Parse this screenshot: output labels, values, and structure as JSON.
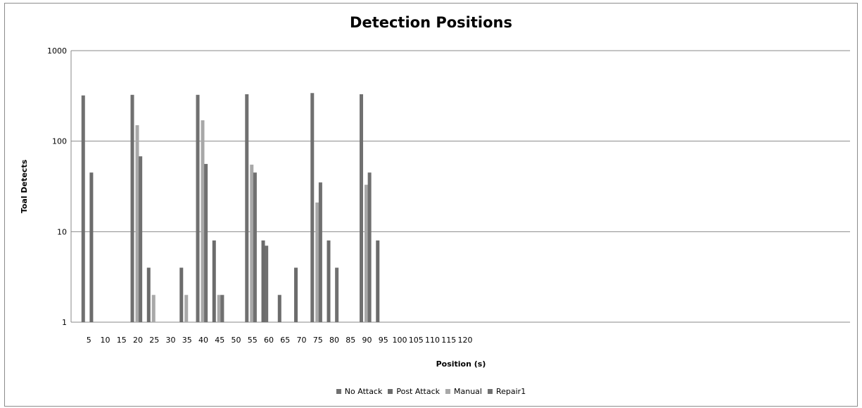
{
  "chart_data": {
    "type": "bar",
    "title": "Detection Positions",
    "xlabel": "Position (s)",
    "ylabel": "Toal Detects",
    "y_scale": "log",
    "ylim": [
      1,
      1000
    ],
    "y_ticks": [
      "1",
      "10",
      "100",
      "1000"
    ],
    "x_tick_labels": [
      "5",
      "10",
      "15",
      "20",
      "25",
      "30",
      "35",
      "40",
      "45",
      "50",
      "55",
      "60",
      "65",
      "70",
      "75",
      "80",
      "85",
      "90",
      "95",
      "100",
      "105",
      "110",
      "115",
      "120"
    ],
    "grid": true,
    "legend_position": "bottom",
    "series": [
      {
        "name": "No Attack",
        "color": "#707070",
        "points": [
          [
            3.5,
            320
          ],
          [
            18.5,
            325
          ],
          [
            38.5,
            325
          ],
          [
            53.5,
            330
          ],
          [
            73.5,
            340
          ],
          [
            88.5,
            330
          ]
        ]
      },
      {
        "name": "Post Attack",
        "color": "#6c6c6c",
        "points": [
          [
            6,
            45
          ],
          [
            23.5,
            4
          ],
          [
            33.5,
            4
          ],
          [
            43.5,
            8
          ],
          [
            58.5,
            8
          ],
          [
            63.5,
            2
          ],
          [
            68.5,
            4
          ],
          [
            78.5,
            8
          ],
          [
            93.5,
            8
          ]
        ]
      },
      {
        "name": "Manual",
        "color": "#a8a8a8",
        "points": [
          [
            20,
            150
          ],
          [
            25,
            2
          ],
          [
            35,
            2
          ],
          [
            40,
            170
          ],
          [
            45,
            2
          ],
          [
            55,
            55
          ],
          [
            75,
            21
          ],
          [
            90,
            33
          ]
        ]
      },
      {
        "name": "Repair1",
        "color": "#707070",
        "points": [
          [
            21,
            68
          ],
          [
            41,
            56
          ],
          [
            46,
            2
          ],
          [
            56,
            45
          ],
          [
            59.5,
            7
          ],
          [
            76,
            35
          ],
          [
            81,
            4
          ],
          [
            91,
            45
          ]
        ]
      }
    ]
  }
}
